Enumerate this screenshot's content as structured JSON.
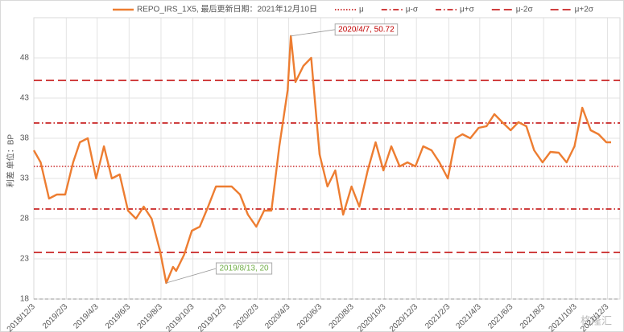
{
  "chart_data": {
    "type": "line",
    "y_label": "利差 单位：BP",
    "watermark": "格隆汇",
    "x": [
      "2018/12/3",
      "2018/12/16",
      "2019/1/1",
      "2019/1/16",
      "2019/2/1",
      "2019/2/16",
      "2019/3/1",
      "2019/3/16",
      "2019/4/1",
      "2019/4/16",
      "2019/5/1",
      "2019/5/16",
      "2019/6/1",
      "2019/6/16",
      "2019/7/1",
      "2019/7/16",
      "2019/8/1",
      "2019/8/13",
      "2019/8/26",
      "2019/9/1",
      "2019/9/16",
      "2019/10/1",
      "2019/10/16",
      "2019/11/1",
      "2019/11/16",
      "2019/12/1",
      "2019/12/16",
      "2020/1/1",
      "2020/1/16",
      "2020/2/1",
      "2020/2/16",
      "2020/3/1",
      "2020/3/16",
      "2020/4/1",
      "2020/4/7",
      "2020/4/16",
      "2020/5/1",
      "2020/5/16",
      "2020/6/1",
      "2020/6/16",
      "2020/7/1",
      "2020/7/16",
      "2020/8/1",
      "2020/8/16",
      "2020/9/1",
      "2020/9/16",
      "2020/10/1",
      "2020/10/16",
      "2020/11/1",
      "2020/11/16",
      "2020/12/1",
      "2020/12/16",
      "2021/1/1",
      "2021/1/16",
      "2021/2/1",
      "2021/2/16",
      "2021/3/1",
      "2021/3/16",
      "2021/4/1",
      "2021/4/16",
      "2021/5/1",
      "2021/5/16",
      "2021/6/1",
      "2021/6/16",
      "2021/7/1",
      "2021/7/16",
      "2021/8/1",
      "2021/8/16",
      "2021/9/1",
      "2021/9/16",
      "2021/10/1",
      "2021/10/16",
      "2021/11/1",
      "2021/11/16",
      "2021/12/1",
      "2021/12/10"
    ],
    "series": [
      {
        "name": "REPO_IRS_1X5, 最后更新日期：2021年12月10日",
        "color": "#ed7d31",
        "values": [
          36.5,
          35,
          30.5,
          31,
          31,
          35,
          37.5,
          38,
          33,
          37,
          33,
          33.5,
          29,
          28,
          29.5,
          28,
          24,
          20,
          22,
          21.5,
          23.5,
          26.5,
          27,
          29.5,
          32,
          32,
          32,
          31,
          28.5,
          27,
          29,
          29,
          37,
          44,
          50.72,
          45,
          47,
          48,
          36,
          32,
          34,
          28.5,
          32,
          29.5,
          34,
          37.5,
          34,
          37,
          34.5,
          35,
          34.5,
          37,
          36.5,
          35,
          33,
          38,
          38.5,
          38,
          39.3,
          39.5,
          41,
          40,
          39,
          40,
          39.5,
          36.5,
          35,
          36.3,
          36.2,
          35,
          37,
          41.8,
          39,
          38.5,
          37.5,
          37.5
        ]
      }
    ],
    "reference_lines": [
      {
        "name": "μ",
        "value": 34.5,
        "color": "#c00000",
        "style": "dotted"
      },
      {
        "name": "μ-σ",
        "value": 29.2,
        "color": "#c00000",
        "style": "dashdot"
      },
      {
        "name": "μ+σ",
        "value": 39.9,
        "color": "#c00000",
        "style": "dashdot"
      },
      {
        "name": "μ-2σ",
        "value": 23.8,
        "color": "#c00000",
        "style": "longdash"
      },
      {
        "name": "μ+2σ",
        "value": 45.2,
        "color": "#c00000",
        "style": "longdash"
      }
    ],
    "annotations": [
      {
        "text": "2020/4/7, 50.72",
        "x": "2020/4/7",
        "y": 50.72,
        "color": "#c00000"
      },
      {
        "text": "2019/8/13, 20",
        "x": "2019/8/13",
        "y": 20,
        "color": "#70ad47"
      }
    ],
    "xlim": [
      "2018/12/3",
      "2021/12/10"
    ],
    "xticks": [
      "2018/12/3",
      "2019/2/3",
      "2019/4/3",
      "2019/6/3",
      "2019/8/3",
      "2019/10/3",
      "2019/12/3",
      "2020/2/3",
      "2020/4/3",
      "2020/6/3",
      "2020/8/3",
      "2020/10/3",
      "2020/12/3",
      "2021/2/3",
      "2021/4/3",
      "2021/6/3",
      "2021/8/3",
      "2021/10/3",
      "2021/12/3"
    ],
    "ylim": [
      18,
      53
    ],
    "yticks": [
      18,
      23,
      28,
      33,
      38,
      43,
      48
    ],
    "grid": true
  }
}
